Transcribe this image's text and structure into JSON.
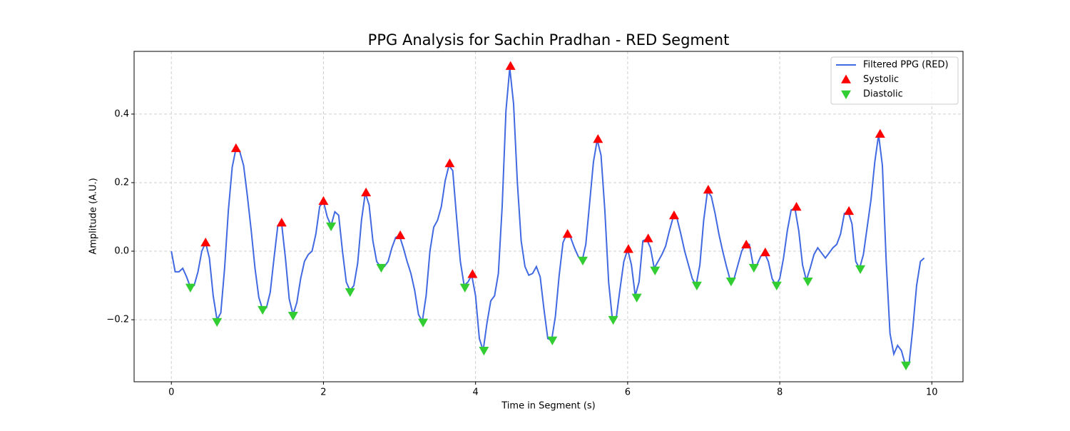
{
  "chart_data": {
    "type": "line",
    "title": "PPG Analysis for Sachin Pradhan - RED Segment",
    "xlabel": "Time in Segment (s)",
    "ylabel": "Amplitude (A.U.)",
    "xlim": [
      -0.49,
      10.41
    ],
    "ylim": [
      -0.381,
      0.583
    ],
    "xticks": [
      0,
      2,
      4,
      6,
      8,
      10
    ],
    "yticks": [
      {
        "value": -0.2,
        "label": "−0.2"
      },
      {
        "value": 0.0,
        "label": "0.0"
      },
      0.2,
      0.4
    ],
    "grid": true,
    "legend": "upper right",
    "series": [
      {
        "name": "Filtered PPG (RED)",
        "type": "line",
        "color": "#4169e1",
        "x": [
          0,
          0.05,
          0.1,
          0.15,
          0.2,
          0.25,
          0.3,
          0.35,
          0.4,
          0.45,
          0.5,
          0.55,
          0.6,
          0.65,
          0.7,
          0.75,
          0.8,
          0.85,
          0.9,
          0.95,
          1,
          1.05,
          1.1,
          1.15,
          1.2,
          1.25,
          1.3,
          1.35,
          1.4,
          1.45,
          1.5,
          1.55,
          1.6,
          1.65,
          1.7,
          1.75,
          1.8,
          1.85,
          1.9,
          1.95,
          2,
          2.05,
          2.1,
          2.15,
          2.2,
          2.25,
          2.3,
          2.35,
          2.4,
          2.45,
          2.5,
          2.55,
          2.6,
          2.65,
          2.7,
          2.75,
          2.8,
          2.85,
          2.9,
          2.95,
          3,
          3.05,
          3.1,
          3.15,
          3.2,
          3.25,
          3.3,
          3.35,
          3.4,
          3.45,
          3.5,
          3.55,
          3.6,
          3.65,
          3.7,
          3.75,
          3.8,
          3.85,
          3.9,
          3.95,
          4,
          4.05,
          4.1,
          4.15,
          4.2,
          4.25,
          4.3,
          4.35,
          4.4,
          4.45,
          4.5,
          4.55,
          4.6,
          4.65,
          4.7,
          4.75,
          4.8,
          4.85,
          4.9,
          4.95,
          5,
          5.05,
          5.1,
          5.15,
          5.2,
          5.25,
          5.3,
          5.35,
          5.4,
          5.45,
          5.5,
          5.55,
          5.6,
          5.65,
          5.7,
          5.75,
          5.8,
          5.85,
          5.9,
          5.95,
          6,
          6.05,
          6.1,
          6.15,
          6.2,
          6.25,
          6.3,
          6.35,
          6.4,
          6.45,
          6.5,
          6.55,
          6.6,
          6.65,
          6.7,
          6.75,
          6.8,
          6.85,
          6.9,
          6.95,
          7,
          7.05,
          7.1,
          7.15,
          7.2,
          7.25,
          7.3,
          7.35,
          7.4,
          7.45,
          7.5,
          7.55,
          7.6,
          7.65,
          7.7,
          7.75,
          7.8,
          7.85,
          7.9,
          7.95,
          8,
          8.05,
          8.1,
          8.15,
          8.2,
          8.25,
          8.3,
          8.35,
          8.4,
          8.45,
          8.5,
          8.55,
          8.6,
          8.65,
          8.7,
          8.75,
          8.8,
          8.85,
          8.9,
          8.95,
          9,
          9.05,
          9.1,
          9.15,
          9.2,
          9.25,
          9.3,
          9.35,
          9.4,
          9.45,
          9.5,
          9.55,
          9.6,
          9.65,
          9.7,
          9.75,
          9.8,
          9.85,
          9.9
        ],
        "values": [
          0,
          -0.06,
          -0.06,
          -0.05,
          -0.075,
          -0.105,
          -0.1,
          -0.06,
          0,
          0.025,
          -0.02,
          -0.13,
          -0.2,
          -0.18,
          -0.05,
          0.12,
          0.245,
          0.3,
          0.29,
          0.25,
          0.16,
          0.06,
          -0.05,
          -0.135,
          -0.17,
          -0.165,
          -0.12,
          -0.02,
          0.075,
          0.08,
          -0.02,
          -0.14,
          -0.185,
          -0.15,
          -0.08,
          -0.03,
          -0.01,
          0,
          0.05,
          0.13,
          0.145,
          0.1,
          0.075,
          0.115,
          0.105,
          0,
          -0.09,
          -0.115,
          -0.1,
          -0.035,
          0.09,
          0.17,
          0.135,
          0.03,
          -0.03,
          -0.045,
          -0.045,
          -0.03,
          0.01,
          0.04,
          0.045,
          0.01,
          -0.03,
          -0.065,
          -0.115,
          -0.185,
          -0.205,
          -0.13,
          0,
          0.07,
          0.09,
          0.13,
          0.205,
          0.25,
          0.235,
          0.1,
          -0.03,
          -0.1,
          -0.09,
          -0.07,
          -0.13,
          -0.255,
          -0.29,
          -0.21,
          -0.145,
          -0.13,
          -0.065,
          0.13,
          0.41,
          0.535,
          0.43,
          0.2,
          0.03,
          -0.045,
          -0.07,
          -0.065,
          -0.045,
          -0.075,
          -0.17,
          -0.255,
          -0.26,
          -0.19,
          -0.07,
          0.025,
          0.05,
          0.04,
          0.01,
          -0.015,
          -0.03,
          0.02,
          0.14,
          0.26,
          0.325,
          0.28,
          0.12,
          -0.09,
          -0.2,
          -0.195,
          -0.11,
          -0.03,
          0.005,
          -0.04,
          -0.13,
          -0.09,
          0.03,
          0.035,
          0.01,
          -0.05,
          -0.03,
          -0.01,
          0.015,
          0.06,
          0.1,
          0.095,
          0.05,
          0,
          -0.04,
          -0.08,
          -0.1,
          -0.04,
          0.09,
          0.175,
          0.16,
          0.11,
          0.05,
          0,
          -0.045,
          -0.085,
          -0.08,
          -0.04,
          0,
          0.02,
          0.02,
          -0.04,
          -0.04,
          -0.015,
          -0.005,
          -0.03,
          -0.08,
          -0.1,
          -0.08,
          -0.02,
          0.06,
          0.12,
          0.125,
          0.06,
          -0.04,
          -0.085,
          -0.05,
          -0.01,
          0.01,
          -0.005,
          -0.02,
          -0.005,
          0.01,
          0.02,
          0.05,
          0.11,
          0.115,
          0.08,
          -0.03,
          -0.05,
          -0.01,
          0.07,
          0.15,
          0.26,
          0.34,
          0.25,
          -0.03,
          -0.24,
          -0.3,
          -0.275,
          -0.29,
          -0.33,
          -0.33,
          -0.225,
          -0.1,
          -0.03,
          -0.02
        ]
      },
      {
        "name": "Systolic",
        "type": "scatter",
        "marker": "triangle-up",
        "color": "#ff0000",
        "x": [
          0.45,
          0.85,
          1.45,
          2.0,
          2.56,
          3.01,
          3.66,
          3.96,
          4.46,
          5.21,
          5.61,
          6.01,
          6.27,
          6.61,
          7.06,
          7.56,
          7.81,
          8.22,
          8.91,
          9.32
        ],
        "values": [
          0.025,
          0.3,
          0.083,
          0.146,
          0.171,
          0.046,
          0.256,
          -0.067,
          0.54,
          0.05,
          0.327,
          0.006,
          0.037,
          0.104,
          0.179,
          0.019,
          -0.004,
          0.129,
          0.117,
          0.342
        ]
      },
      {
        "name": "Diastolic",
        "type": "scatter",
        "marker": "triangle-down",
        "color": "#32cd32",
        "x": [
          0.25,
          0.6,
          1.2,
          1.6,
          2.1,
          2.35,
          2.76,
          3.31,
          3.86,
          4.11,
          5.01,
          5.41,
          5.81,
          6.12,
          6.36,
          6.91,
          7.36,
          7.66,
          7.96,
          8.37,
          9.06,
          9.66
        ],
        "values": [
          -0.106,
          -0.206,
          -0.171,
          -0.188,
          0.073,
          -0.119,
          -0.048,
          -0.208,
          -0.106,
          -0.29,
          -0.26,
          -0.027,
          -0.2,
          -0.135,
          -0.056,
          -0.1,
          -0.088,
          -0.048,
          -0.1,
          -0.088,
          -0.052,
          -0.333
        ]
      }
    ]
  }
}
